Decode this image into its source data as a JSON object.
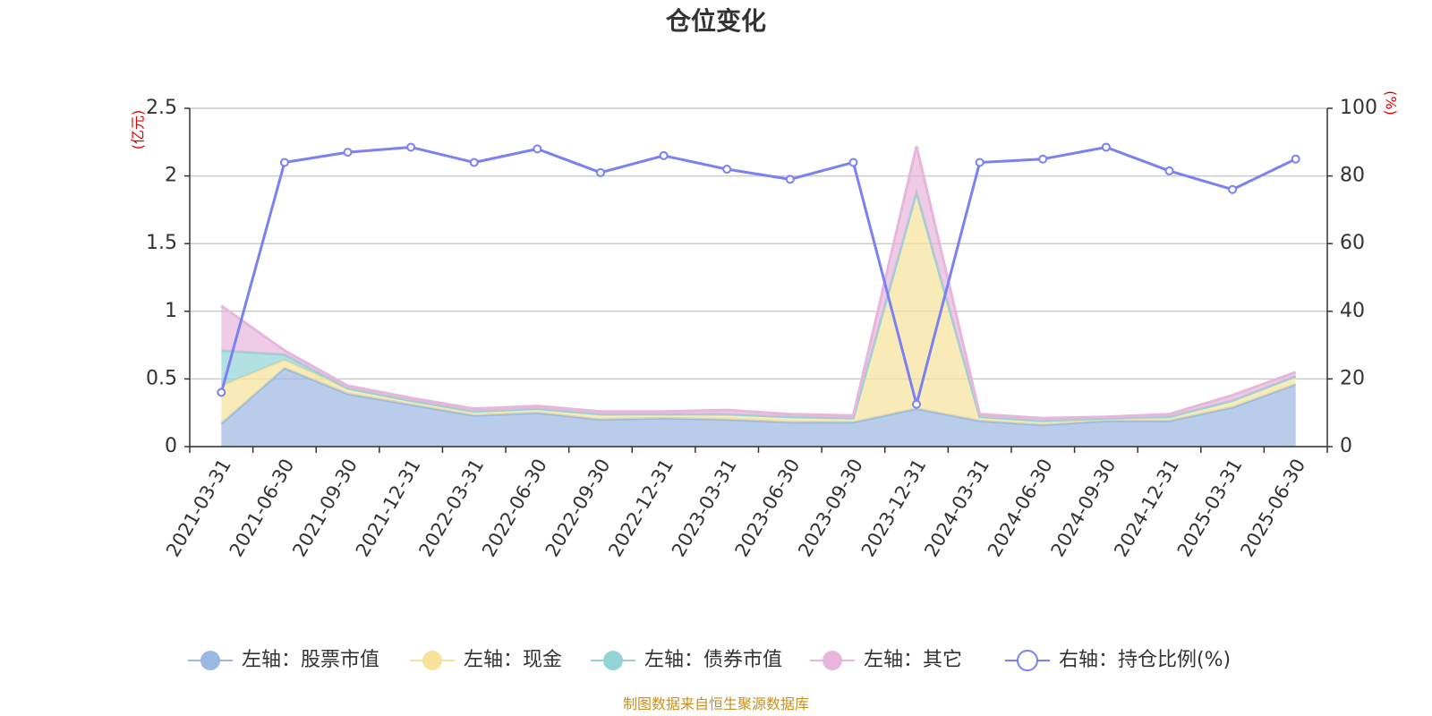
{
  "chart_data": {
    "type": "area",
    "title": "仓位变化",
    "left_unit": "(亿元)",
    "right_unit": "(%)",
    "x": [
      "2021-03-31",
      "2021-06-30",
      "2021-09-30",
      "2021-12-31",
      "2022-03-31",
      "2022-06-30",
      "2022-09-30",
      "2022-12-31",
      "2023-03-31",
      "2023-06-30",
      "2023-09-30",
      "2023-12-31",
      "2024-03-31",
      "2024-06-30",
      "2024-09-30",
      "2024-12-31",
      "2025-03-31",
      "2025-06-30"
    ],
    "left_axis": {
      "min": 0,
      "max": 2.5,
      "ticks": [
        "0",
        "0.5",
        "1",
        "1.5",
        "2",
        "2.5"
      ]
    },
    "right_axis": {
      "min": 0,
      "max": 100,
      "ticks": [
        "0",
        "20",
        "40",
        "60",
        "80",
        "100"
      ]
    },
    "series": [
      {
        "name": "左轴：股票市值",
        "axis": "left",
        "stack": true,
        "color": "#9bb8e3",
        "values": [
          0.17,
          0.58,
          0.39,
          0.31,
          0.23,
          0.25,
          0.2,
          0.21,
          0.2,
          0.18,
          0.18,
          0.28,
          0.19,
          0.16,
          0.19,
          0.19,
          0.29,
          0.46
        ]
      },
      {
        "name": "左轴：现金",
        "axis": "left",
        "stack": true,
        "color": "#f7e29a",
        "values": [
          0.28,
          0.06,
          0.04,
          0.03,
          0.03,
          0.03,
          0.04,
          0.03,
          0.04,
          0.04,
          0.03,
          1.6,
          0.03,
          0.03,
          0.02,
          0.03,
          0.05,
          0.06
        ]
      },
      {
        "name": "左轴：债券市值",
        "axis": "left",
        "stack": true,
        "color": "#93d3d6",
        "values": [
          0.26,
          0.04,
          0.0,
          0.0,
          0.0,
          0.0,
          0.0,
          0.0,
          0.0,
          0.0,
          0.0,
          0.0,
          0.0,
          0.0,
          0.0,
          0.0,
          0.0,
          0.0
        ]
      },
      {
        "name": "左轴：其它",
        "axis": "left",
        "stack": true,
        "color": "#e7b6dc",
        "values": [
          0.33,
          0.03,
          0.02,
          0.02,
          0.02,
          0.02,
          0.02,
          0.02,
          0.03,
          0.02,
          0.02,
          0.34,
          0.02,
          0.02,
          0.01,
          0.02,
          0.04,
          0.03
        ]
      },
      {
        "name": "右轴：持仓比例(%)",
        "axis": "right",
        "type": "line",
        "color": "#7b80f2",
        "values": [
          16,
          84,
          87,
          88.5,
          84,
          88,
          81,
          86,
          82,
          79,
          84,
          12.5,
          84,
          85,
          88.5,
          81.5,
          76,
          85
        ]
      }
    ],
    "legend_position": "bottom",
    "grid": true
  },
  "footer": {
    "source": "制图数据来自恒生聚源数据库"
  }
}
